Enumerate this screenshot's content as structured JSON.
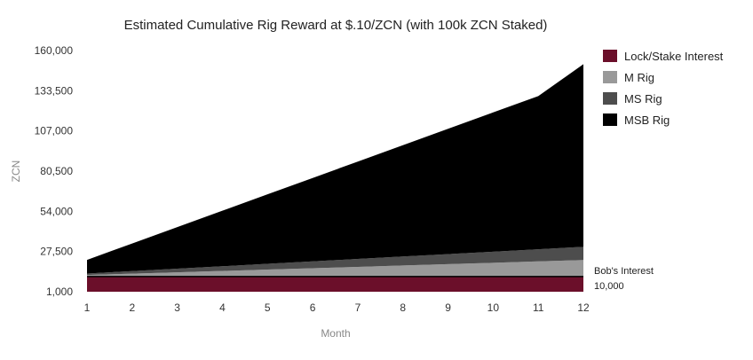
{
  "chart_data": {
    "type": "area",
    "title": "Estimated Cumulative Rig Reward at $.10/ZCN (with 100k ZCN Staked)",
    "xlabel": "Month",
    "ylabel": "ZCN",
    "x": [
      1,
      2,
      3,
      4,
      5,
      6,
      7,
      8,
      9,
      10,
      11,
      12
    ],
    "x_tick_labels": [
      "1",
      "2",
      "3",
      "4",
      "5",
      "6",
      "7",
      "8",
      "9",
      "10",
      "11",
      "12"
    ],
    "y_tick_labels": [
      "1,000",
      "27,500",
      "54,000",
      "80,500",
      "107,000",
      "133,500",
      "160,000"
    ],
    "ylim": [
      1000,
      160000
    ],
    "stacked": true,
    "grid": false,
    "legend_position": "right",
    "series": [
      {
        "name": "Lock/Stake Interest",
        "color": "#6b0f2a",
        "values": [
          10000,
          10000,
          10000,
          10000,
          10000,
          10000,
          10000,
          10000,
          10000,
          10000,
          10000,
          10000
        ]
      },
      {
        "name": "M Rig",
        "color": "#999999",
        "values": [
          1000,
          1900,
          2800,
          3700,
          4600,
          5500,
          6400,
          7300,
          8200,
          9100,
          10000,
          10900
        ]
      },
      {
        "name": "MS Rig",
        "color": "#4d4d4d",
        "values": [
          1000,
          1700,
          2400,
          3100,
          3800,
          4500,
          5200,
          5900,
          6600,
          7300,
          8000,
          8700
        ]
      },
      {
        "name": "MSB Rig",
        "color": "#000000",
        "values": [
          9000,
          18200,
          27400,
          36600,
          45800,
          55000,
          64200,
          73400,
          82600,
          91800,
          101000,
          120400
        ]
      }
    ],
    "annotations": [
      {
        "text": "Bob's Interest",
        "value_text": "10,000",
        "y": 10000
      }
    ]
  }
}
